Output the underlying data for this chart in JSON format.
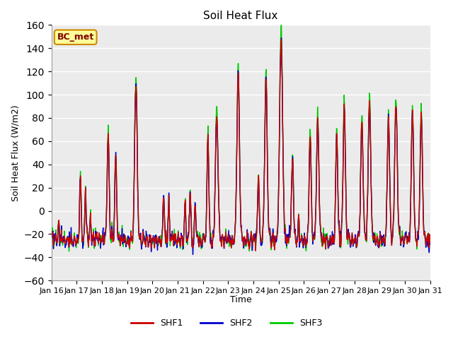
{
  "title": "Soil Heat Flux",
  "ylabel": "Soil Heat Flux (W/m2)",
  "xlabel": "Time",
  "ylim": [
    -60,
    160
  ],
  "yticks": [
    -60,
    -40,
    -20,
    0,
    20,
    40,
    60,
    80,
    100,
    120,
    140,
    160
  ],
  "x_tick_labels": [
    "Jan 16",
    "Jan 17",
    "Jan 18",
    "Jan 19",
    "Jan 20",
    "Jan 21",
    "Jan 22",
    "Jan 23",
    "Jan 24",
    "Jan 25",
    "Jan 26",
    "Jan 27",
    "Jan 28",
    "Jan 29",
    "Jan 30",
    "Jan 31"
  ],
  "colors": {
    "SHF1": "#cc0000",
    "SHF2": "#0000cc",
    "SHF3": "#00cc00"
  },
  "legend_labels": [
    "SHF1",
    "SHF2",
    "SHF3"
  ],
  "annotation": {
    "text": "BC_met",
    "facecolor": "#ffff99",
    "edgecolor": "#cc8800",
    "textcolor": "#800000"
  },
  "plot_bg_color": "#ebebeb",
  "n_points": 960,
  "line_width": 1.0
}
